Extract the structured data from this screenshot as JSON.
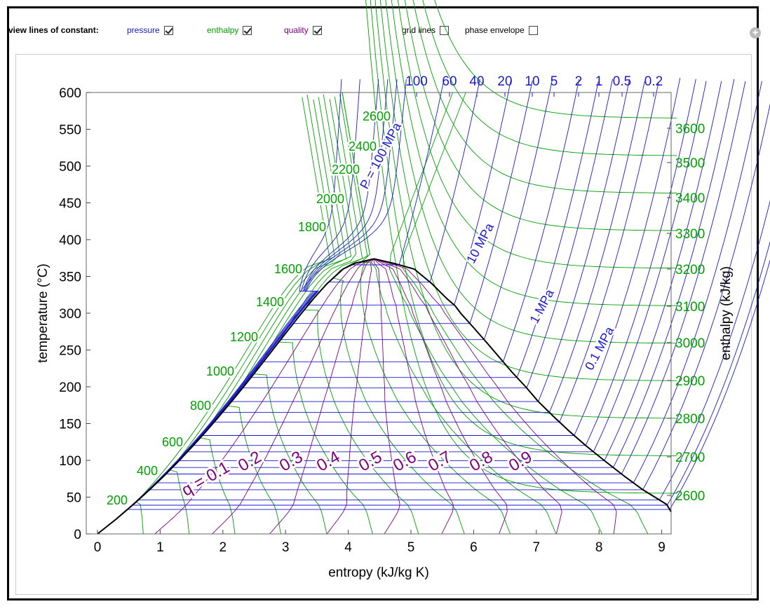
{
  "controls": {
    "heading": "view lines of constant:",
    "pressure": {
      "label": "pressure",
      "checked": true
    },
    "enthalpy": {
      "label": "enthalpy",
      "checked": true
    },
    "quality": {
      "label": "quality",
      "checked": true
    },
    "grid_lines": {
      "label": "grid lines",
      "checked": false
    },
    "phase_envelope": {
      "label": "phase envelope",
      "checked": false
    }
  },
  "colors": {
    "pressure": "#1a1acc",
    "enthalpy": "#00a000",
    "quality": "#800080",
    "dome": "#000000"
  },
  "chart_data": {
    "type": "line",
    "xlabel": "entropy (kJ/kg K)",
    "ylabel": "temperature (°C)",
    "y2label": "enthalpy (kJ/kg)",
    "xlim": [
      0,
      9.2
    ],
    "ylim": [
      0,
      600
    ],
    "xticks": [
      "0",
      "1",
      "2",
      "3",
      "4",
      "5",
      "6",
      "7",
      "8",
      "9"
    ],
    "yticks": [
      "0",
      "50",
      "100",
      "150",
      "200",
      "250",
      "300",
      "350",
      "400",
      "450",
      "500",
      "550",
      "600"
    ],
    "y2ticks": [
      "2600",
      "2700",
      "2800",
      "2900",
      "3000",
      "3100",
      "3200",
      "3300",
      "3400",
      "3500",
      "3600"
    ],
    "pressure_top_labels": [
      "100",
      "60",
      "40",
      "20",
      "10",
      "5",
      "2",
      "1",
      "0.5",
      "0.2"
    ],
    "pressure_curve_labels": [
      "P = 100 MPa",
      "10 MPa",
      "1 MPa",
      "0.1 MPa"
    ],
    "enthalpy_labels": [
      "200",
      "400",
      "600",
      "800",
      "1000",
      "1200",
      "1400",
      "1600",
      "1800",
      "2000",
      "2200",
      "2400",
      "2600"
    ],
    "quality_labels": [
      "q = 0.1",
      "0.2",
      "0.3",
      "0.4",
      "0.5",
      "0.6",
      "0.7",
      "0.8",
      "0.9"
    ],
    "saturation_dome": {
      "liquid": [
        [
          0,
          0.01
        ],
        [
          0.296,
          20
        ],
        [
          0.572,
          40
        ],
        [
          0.831,
          60
        ],
        [
          1.075,
          80
        ],
        [
          1.307,
          100
        ],
        [
          1.527,
          120
        ],
        [
          1.739,
          140
        ],
        [
          1.942,
          160
        ],
        [
          2.139,
          180
        ],
        [
          2.331,
          200
        ],
        [
          2.518,
          220
        ],
        [
          2.702,
          240
        ],
        [
          2.885,
          260
        ],
        [
          3.068,
          280
        ],
        [
          3.255,
          300
        ],
        [
          3.449,
          320
        ],
        [
          3.66,
          340
        ],
        [
          3.917,
          360
        ],
        [
          4.111,
          368
        ],
        [
          4.41,
          373.9
        ]
      ],
      "vapor": [
        [
          4.41,
          373.9
        ],
        [
          4.716,
          368
        ],
        [
          5.053,
          360
        ],
        [
          5.336,
          340
        ],
        [
          5.57,
          320
        ],
        [
          5.706,
          310
        ],
        [
          5.793,
          300
        ],
        [
          6.003,
          280
        ],
        [
          6.209,
          260
        ],
        [
          6.41,
          240
        ],
        [
          6.611,
          220
        ],
        [
          6.83,
          200
        ],
        [
          7.03,
          180
        ],
        [
          7.27,
          160
        ],
        [
          7.52,
          140
        ],
        [
          7.79,
          120
        ],
        [
          8.08,
          100
        ],
        [
          8.38,
          80
        ],
        [
          8.7,
          60
        ],
        [
          9.08,
          40
        ],
        [
          9.15,
          30
        ]
      ]
    }
  }
}
